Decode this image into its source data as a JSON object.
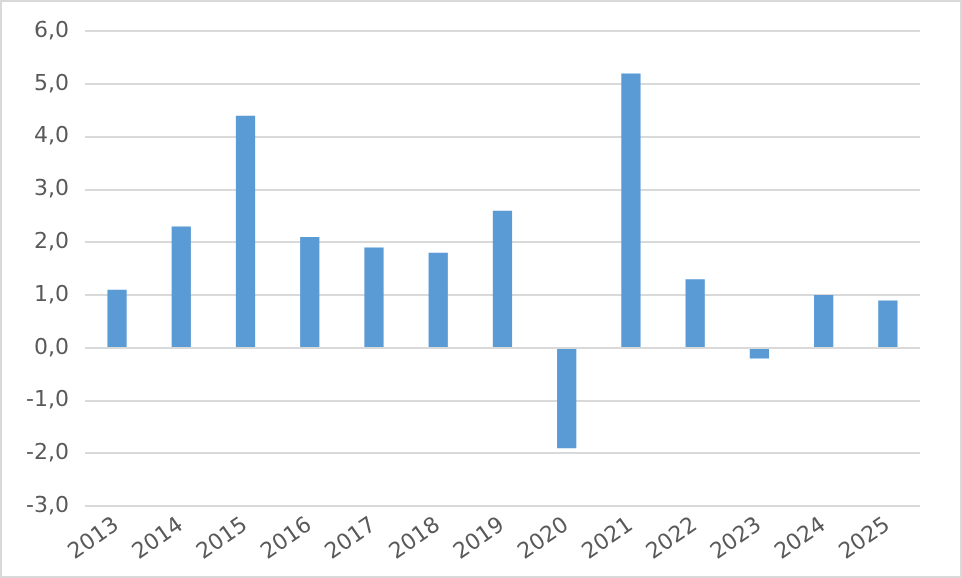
{
  "chart_data": {
    "type": "bar",
    "categories": [
      "2013",
      "2014",
      "2015",
      "2016",
      "2017",
      "2018",
      "2019",
      "2020",
      "2021",
      "2022",
      "2023",
      "2024",
      "2025"
    ],
    "values": [
      1.1,
      2.3,
      4.4,
      2.1,
      1.9,
      1.8,
      2.6,
      -1.9,
      5.2,
      1.3,
      -0.2,
      1.0,
      0.9
    ],
    "color": "#5b9bd5",
    "ylim": [
      -3,
      6
    ],
    "yticks": [
      {
        "value": -3,
        "label": "-3,0"
      },
      {
        "value": -2,
        "label": "-2,0"
      },
      {
        "value": -1,
        "label": "-1,0"
      },
      {
        "value": 0,
        "label": "0,0"
      },
      {
        "value": 1,
        "label": "1,0"
      },
      {
        "value": 2,
        "label": "2,0"
      },
      {
        "value": 3,
        "label": "3,0"
      },
      {
        "value": 4,
        "label": "4,0"
      },
      {
        "value": 5,
        "label": "5,0"
      },
      {
        "value": 6,
        "label": "6,0"
      }
    ],
    "grid": "y",
    "legend": false
  }
}
